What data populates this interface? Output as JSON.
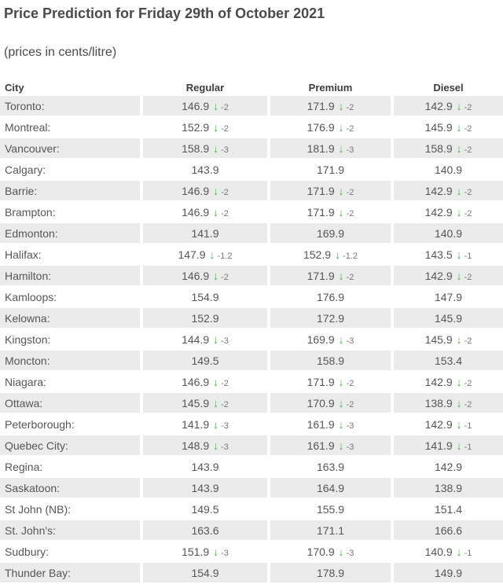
{
  "title": "Price Prediction for Friday 29th of October 2021",
  "subtitle": "(prices in cents/litre)",
  "icons": {
    "down_arrow": "↓"
  },
  "colors": {
    "arrow_green": "#45b545",
    "row_shading": "#ebebeb",
    "body_text": "#565656",
    "title_text": "#4a4a4a"
  },
  "table": {
    "columns": [
      "City",
      "Regular",
      "Premium",
      "Diesel"
    ],
    "rows": [
      {
        "city": "Toronto:",
        "regular": {
          "price": "146.9",
          "change": "-2"
        },
        "premium": {
          "price": "171.9",
          "change": "-2"
        },
        "diesel": {
          "price": "142.9",
          "change": "-2"
        }
      },
      {
        "city": "Montreal:",
        "regular": {
          "price": "152.9",
          "change": "-2"
        },
        "premium": {
          "price": "176.9",
          "change": "-2"
        },
        "diesel": {
          "price": "145.9",
          "change": "-2"
        }
      },
      {
        "city": "Vancouver:",
        "regular": {
          "price": "158.9",
          "change": "-3"
        },
        "premium": {
          "price": "181.9",
          "change": "-3"
        },
        "diesel": {
          "price": "158.9",
          "change": "-2"
        }
      },
      {
        "city": "Calgary:",
        "regular": {
          "price": "143.9"
        },
        "premium": {
          "price": "171.9"
        },
        "diesel": {
          "price": "140.9"
        }
      },
      {
        "city": "Barrie:",
        "regular": {
          "price": "146.9",
          "change": "-2"
        },
        "premium": {
          "price": "171.9",
          "change": "-2"
        },
        "diesel": {
          "price": "142.9",
          "change": "-2"
        }
      },
      {
        "city": "Brampton:",
        "regular": {
          "price": "146.9",
          "change": "-2"
        },
        "premium": {
          "price": "171.9",
          "change": "-2"
        },
        "diesel": {
          "price": "142.9",
          "change": "-2"
        }
      },
      {
        "city": "Edmonton:",
        "regular": {
          "price": "141.9"
        },
        "premium": {
          "price": "169.9"
        },
        "diesel": {
          "price": "140.9"
        }
      },
      {
        "city": "Halifax:",
        "regular": {
          "price": "147.9",
          "change": "-1.2"
        },
        "premium": {
          "price": "152.9",
          "change": "-1.2"
        },
        "diesel": {
          "price": "143.5",
          "change": "-1"
        }
      },
      {
        "city": "Hamilton:",
        "regular": {
          "price": "146.9",
          "change": "-2"
        },
        "premium": {
          "price": "171.9",
          "change": "-2"
        },
        "diesel": {
          "price": "142.9",
          "change": "-2"
        }
      },
      {
        "city": "Kamloops:",
        "regular": {
          "price": "154.9"
        },
        "premium": {
          "price": "176.9"
        },
        "diesel": {
          "price": "147.9"
        }
      },
      {
        "city": "Kelowna:",
        "regular": {
          "price": "152.9"
        },
        "premium": {
          "price": "172.9"
        },
        "diesel": {
          "price": "145.9"
        }
      },
      {
        "city": "Kingston:",
        "regular": {
          "price": "144.9",
          "change": "-3"
        },
        "premium": {
          "price": "169.9",
          "change": "-3"
        },
        "diesel": {
          "price": "145.9",
          "change": "-2"
        }
      },
      {
        "city": "Moncton:",
        "regular": {
          "price": "149.5"
        },
        "premium": {
          "price": "158.9"
        },
        "diesel": {
          "price": "153.4"
        }
      },
      {
        "city": "Niagara:",
        "regular": {
          "price": "146.9",
          "change": "-2"
        },
        "premium": {
          "price": "171.9",
          "change": "-2"
        },
        "diesel": {
          "price": "142.9",
          "change": "-2"
        }
      },
      {
        "city": "Ottawa:",
        "regular": {
          "price": "145.9",
          "change": "-2"
        },
        "premium": {
          "price": "170.9",
          "change": "-2"
        },
        "diesel": {
          "price": "138.9",
          "change": "-2"
        }
      },
      {
        "city": "Peterborough:",
        "regular": {
          "price": "141.9",
          "change": "-3"
        },
        "premium": {
          "price": "161.9",
          "change": "-3"
        },
        "diesel": {
          "price": "142.9",
          "change": "-1"
        }
      },
      {
        "city": "Quebec City:",
        "regular": {
          "price": "148.9",
          "change": "-3"
        },
        "premium": {
          "price": "161.9",
          "change": "-3"
        },
        "diesel": {
          "price": "141.9",
          "change": "-1"
        }
      },
      {
        "city": "Regina:",
        "regular": {
          "price": "143.9"
        },
        "premium": {
          "price": "163.9"
        },
        "diesel": {
          "price": "142.9"
        }
      },
      {
        "city": "Saskatoon:",
        "regular": {
          "price": "143.9"
        },
        "premium": {
          "price": "164.9"
        },
        "diesel": {
          "price": "138.9"
        }
      },
      {
        "city": "St John (NB):",
        "regular": {
          "price": "149.5"
        },
        "premium": {
          "price": "155.9"
        },
        "diesel": {
          "price": "151.4"
        }
      },
      {
        "city": "St. John's:",
        "regular": {
          "price": "163.6"
        },
        "premium": {
          "price": "171.1"
        },
        "diesel": {
          "price": "166.6"
        }
      },
      {
        "city": "Sudbury:",
        "regular": {
          "price": "151.9",
          "change": "-3"
        },
        "premium": {
          "price": "170.9",
          "change": "-3"
        },
        "diesel": {
          "price": "140.9",
          "change": "-1"
        }
      },
      {
        "city": "Thunder Bay:",
        "regular": {
          "price": "154.9"
        },
        "premium": {
          "price": "178.9"
        },
        "diesel": {
          "price": "149.9"
        }
      }
    ]
  }
}
